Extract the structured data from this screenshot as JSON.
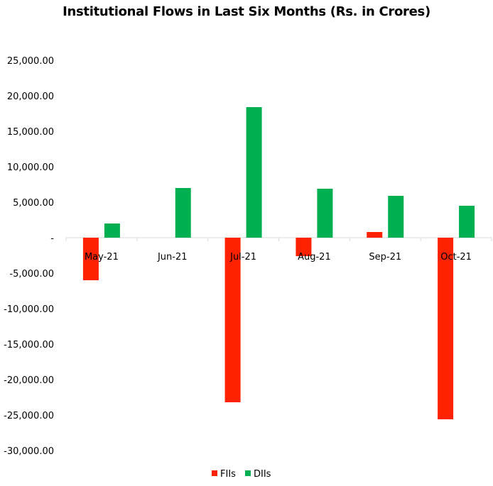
{
  "chart_data": {
    "type": "bar",
    "title": "Institutional Flows in Last Six Months (Rs. in Crores)",
    "xlabel": "",
    "ylabel": "",
    "categories": [
      "May-21",
      "Jun-21",
      "Jul-21",
      "Aug-21",
      "Sep-21",
      "Oct-21"
    ],
    "series": [
      {
        "name": "FIIs",
        "color": "#ff2200",
        "values": [
          -6000,
          0,
          -23200,
          -2600,
          800,
          -25600
        ]
      },
      {
        "name": "DIIs",
        "color": "#00b050",
        "values": [
          2000,
          7000,
          18400,
          6900,
          5900,
          4500
        ]
      }
    ],
    "ylim": [
      -30000,
      25000
    ],
    "y_ticks": [
      25000,
      20000,
      15000,
      10000,
      5000,
      0,
      -5000,
      -10000,
      -15000,
      -20000,
      -25000,
      -30000
    ],
    "y_tick_labels": [
      "25,000.00",
      "20,000.00",
      "15,000.00",
      "10,000.00",
      "5,000.00",
      "-",
      "-5,000.00",
      "-10,000.00",
      "-15,000.00",
      "-20,000.00",
      "-25,000.00",
      "-30,000.00"
    ],
    "grid": false,
    "legend": "bottom",
    "axis_color": "#d9d9d9"
  }
}
